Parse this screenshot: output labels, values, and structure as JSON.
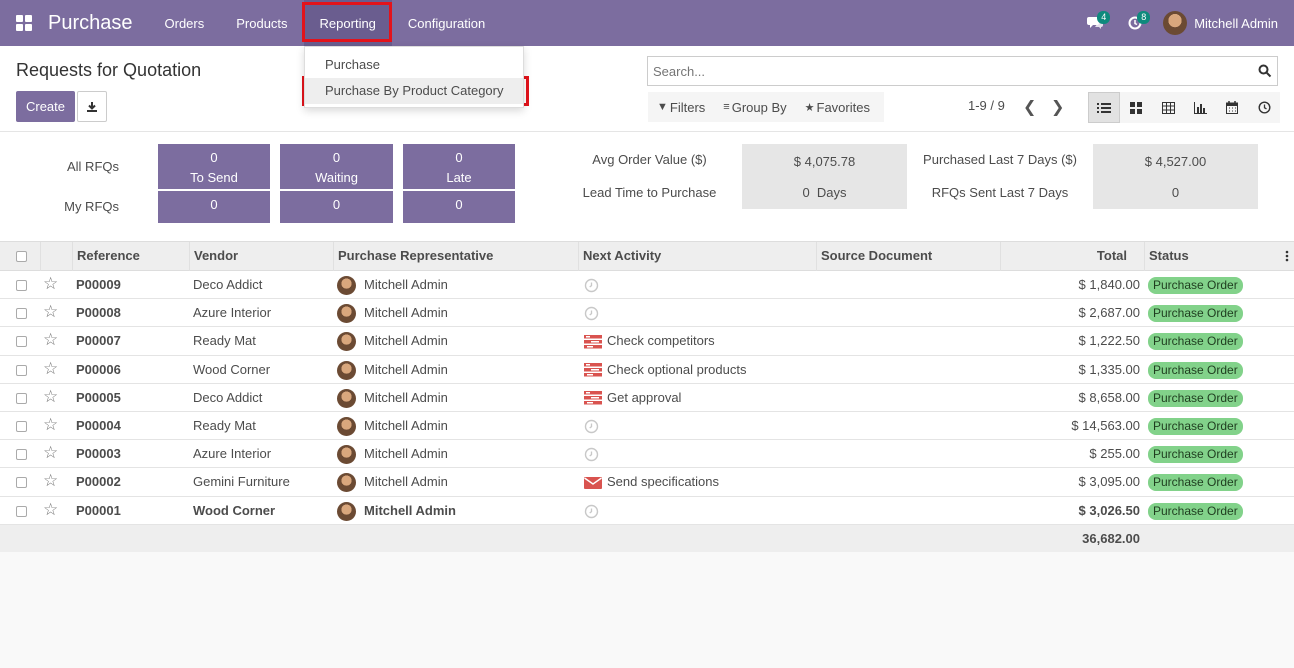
{
  "navbar": {
    "app_title": "Purchase",
    "menu": [
      "Orders",
      "Products",
      "Reporting",
      "Configuration"
    ],
    "messages_count": "4",
    "activities_count": "8",
    "user_name": "Mitchell Admin"
  },
  "reporting_dropdown": {
    "items": [
      "Purchase",
      "Purchase By Product Category"
    ]
  },
  "control_panel": {
    "title": "Requests for Quotation",
    "create_label": "Create",
    "search_placeholder": "Search...",
    "filters_label": "Filters",
    "group_by_label": "Group By",
    "favorites_label": "Favorites",
    "pager": "1-9 / 9"
  },
  "dashboard": {
    "all_rfqs_label": "All RFQs",
    "my_rfqs_label": "My RFQs",
    "tiles": [
      {
        "label": "To Send",
        "all": "0",
        "my": "0"
      },
      {
        "label": "Waiting",
        "all": "0",
        "my": "0"
      },
      {
        "label": "Late",
        "all": "0",
        "my": "0"
      }
    ],
    "stats": {
      "avg_order_value_label": "Avg Order Value ($)",
      "avg_order_value": "$ 4,075.78",
      "purchased_7_label": "Purchased Last 7 Days ($)",
      "purchased_7": "$ 4,527.00",
      "lead_time_label": "Lead Time to Purchase",
      "lead_time": "0  Days",
      "rfqs_sent_label": "RFQs Sent Last 7 Days",
      "rfqs_sent": "0"
    }
  },
  "table": {
    "columns": [
      "Reference",
      "Vendor",
      "Purchase Representative",
      "Next Activity",
      "Source Document",
      "Total",
      "Status"
    ],
    "rows": [
      {
        "ref": "P00009",
        "vendor": "Deco Addict",
        "rep": "Mitchell Admin",
        "activity": "",
        "activity_icon": "clock-icon",
        "total": "$ 1,840.00",
        "status": "Purchase Order"
      },
      {
        "ref": "P00008",
        "vendor": "Azure Interior",
        "rep": "Mitchell Admin",
        "activity": "",
        "activity_icon": "clock-icon",
        "total": "$ 2,687.00",
        "status": "Purchase Order"
      },
      {
        "ref": "P00007",
        "vendor": "Ready Mat",
        "rep": "Mitchell Admin",
        "activity": "Check competitors",
        "activity_icon": "tasks-icon",
        "total": "$ 1,222.50",
        "status": "Purchase Order"
      },
      {
        "ref": "P00006",
        "vendor": "Wood Corner",
        "rep": "Mitchell Admin",
        "activity": "Check optional products",
        "activity_icon": "tasks-icon",
        "total": "$ 1,335.00",
        "status": "Purchase Order"
      },
      {
        "ref": "P00005",
        "vendor": "Deco Addict",
        "rep": "Mitchell Admin",
        "activity": "Get approval",
        "activity_icon": "tasks-icon",
        "total": "$ 8,658.00",
        "status": "Purchase Order"
      },
      {
        "ref": "P00004",
        "vendor": "Ready Mat",
        "rep": "Mitchell Admin",
        "activity": "",
        "activity_icon": "clock-icon",
        "total": "$ 14,563.00",
        "status": "Purchase Order"
      },
      {
        "ref": "P00003",
        "vendor": "Azure Interior",
        "rep": "Mitchell Admin",
        "activity": "",
        "activity_icon": "clock-icon",
        "total": "$ 255.00",
        "status": "Purchase Order"
      },
      {
        "ref": "P00002",
        "vendor": "Gemini Furniture",
        "rep": "Mitchell Admin",
        "activity": "Send specifications",
        "activity_icon": "envelope-icon",
        "total": "$ 3,095.00",
        "status": "Purchase Order"
      },
      {
        "ref": "P00001",
        "vendor": "Wood Corner",
        "rep": "Mitchell Admin",
        "activity": "",
        "activity_icon": "clock-icon",
        "total": "$ 3,026.50",
        "status": "Purchase Order"
      }
    ],
    "grand_total": "36,682.00"
  },
  "colors": {
    "brand": "#7c6d9f",
    "highlight": "#e3131b",
    "status_badge": "#82d28a",
    "activity_red": "#d9534f"
  }
}
